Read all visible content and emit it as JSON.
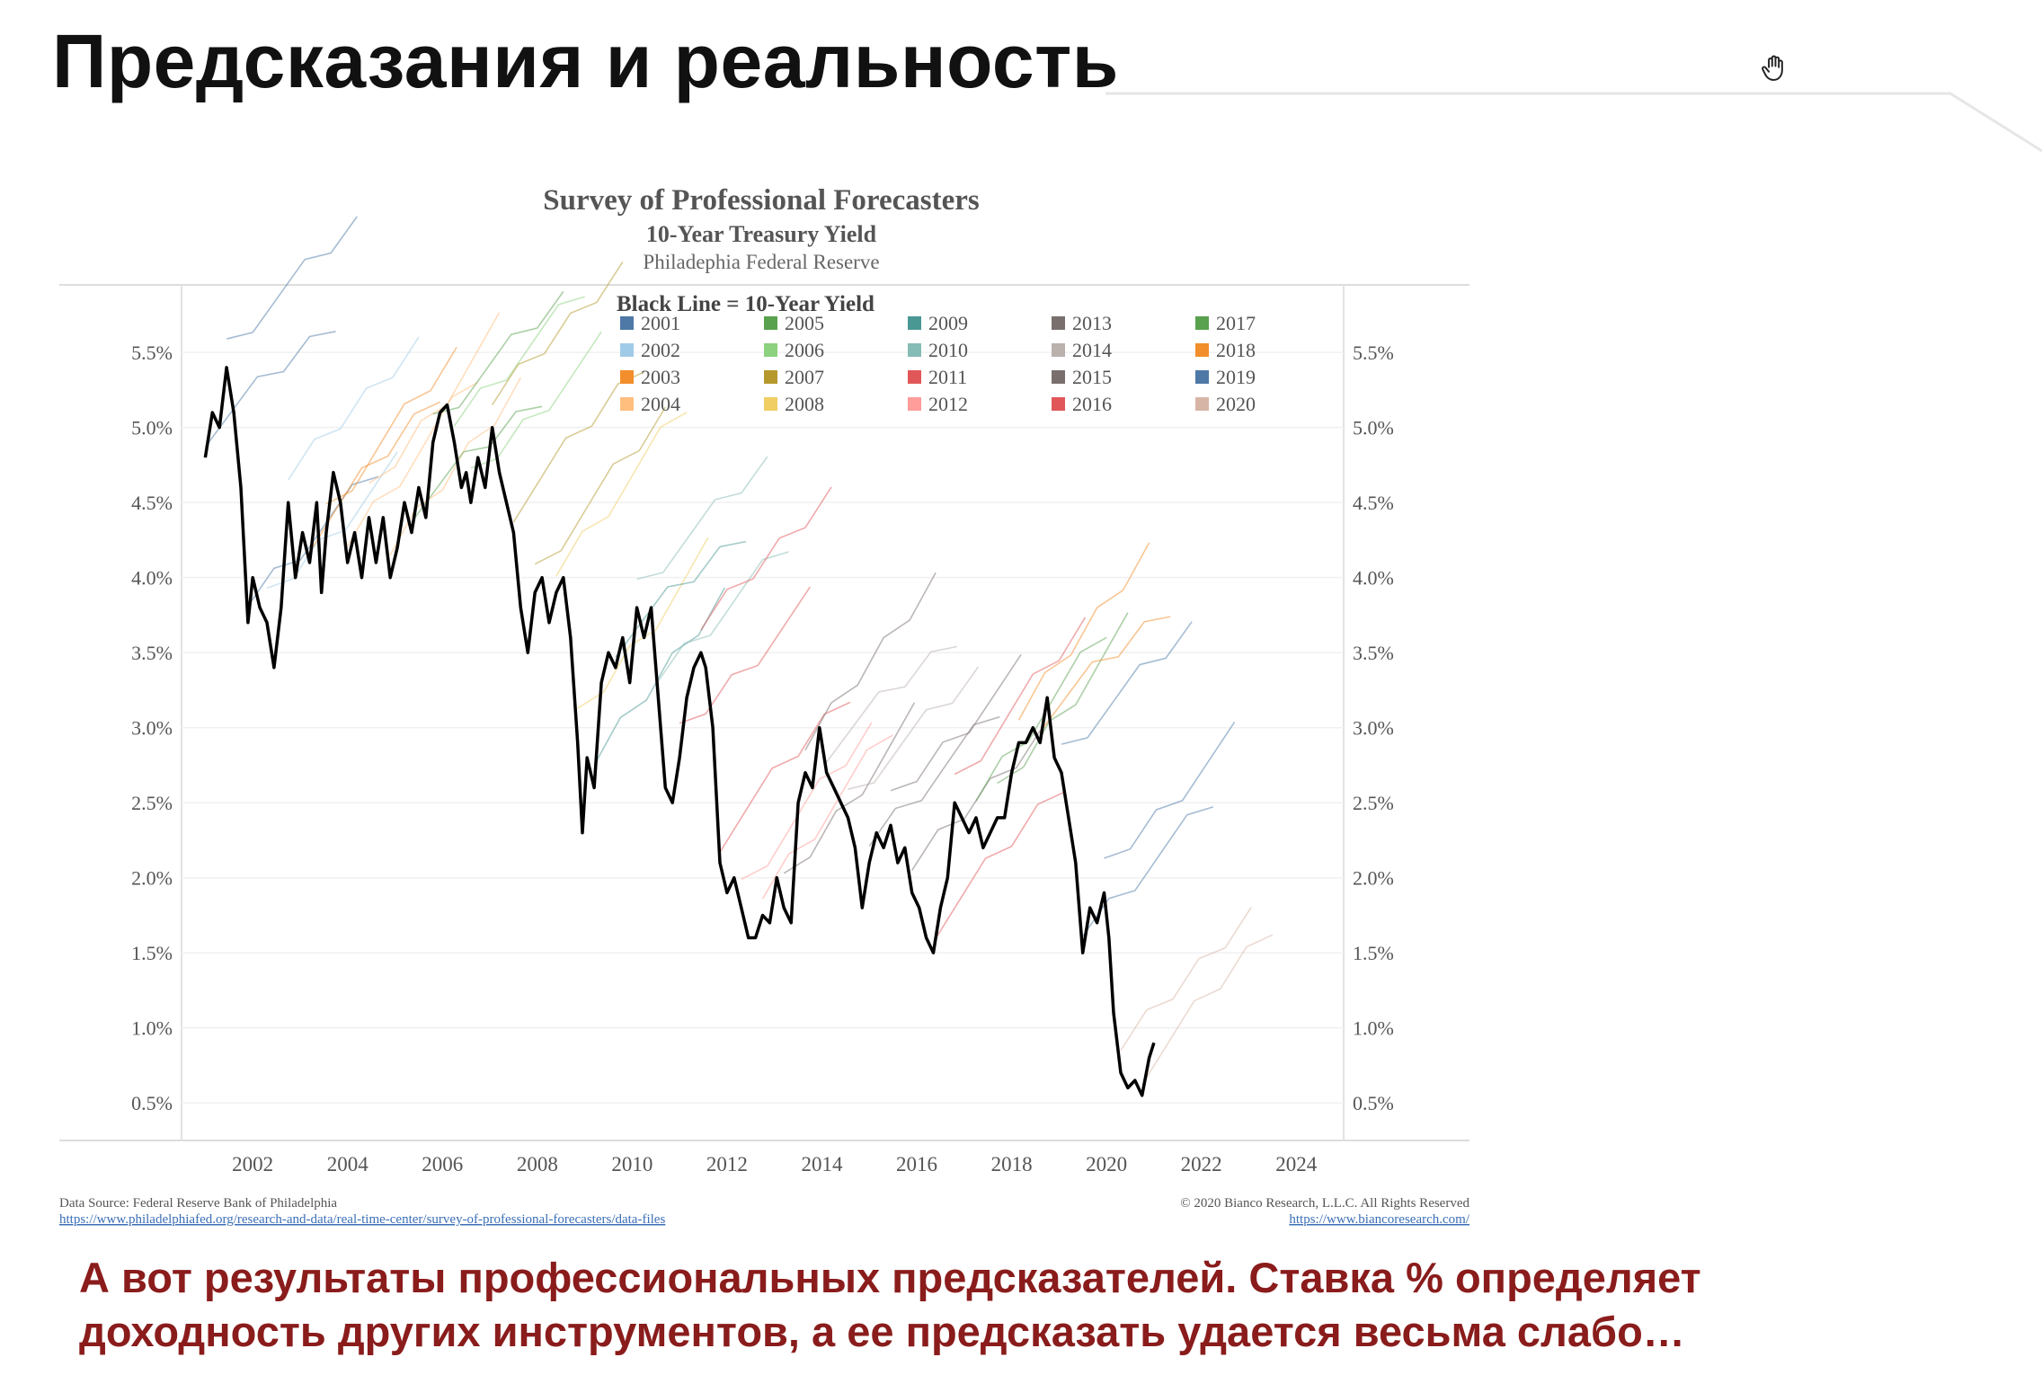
{
  "slide": {
    "title": "Предсказания и реальность",
    "caption_line1": "А вот результаты профессиональных предсказателей. Ставка % определяет",
    "caption_line2": "доходность других инструментов, а ее предсказать удается весьма слабо…",
    "cursor_icon": "hand-cursor-icon"
  },
  "chart_data": {
    "type": "line",
    "title": "Survey of Professional Forecasters",
    "subtitle": "10-Year Treasury Yield",
    "source_org": "Philadephia Federal Reserve",
    "legend_title": "Black Line = 10-Year Yield",
    "legend_placement": "top-center",
    "grid": true,
    "xlim": [
      2000.5,
      2025.0
    ],
    "ylim": [
      0.25,
      5.95
    ],
    "x_ticks": [
      "2002",
      "2004",
      "2006",
      "2008",
      "2010",
      "2012",
      "2014",
      "2016",
      "2018",
      "2020",
      "2022",
      "2024"
    ],
    "y_ticks": [
      "0.5%",
      "1.0%",
      "1.5%",
      "2.0%",
      "2.5%",
      "3.0%",
      "3.5%",
      "4.0%",
      "4.5%",
      "5.0%",
      "5.5%"
    ],
    "legend": [
      {
        "label": "2001",
        "color": "#4e79a7"
      },
      {
        "label": "2002",
        "color": "#a0cbe8"
      },
      {
        "label": "2003",
        "color": "#f28e2b"
      },
      {
        "label": "2004",
        "color": "#ffbe7d"
      },
      {
        "label": "2005",
        "color": "#59a14f"
      },
      {
        "label": "2006",
        "color": "#8cd17d"
      },
      {
        "label": "2007",
        "color": "#b6992d"
      },
      {
        "label": "2008",
        "color": "#f1ce63"
      },
      {
        "label": "2009",
        "color": "#499894"
      },
      {
        "label": "2010",
        "color": "#86bcb6"
      },
      {
        "label": "2011",
        "color": "#e15759"
      },
      {
        "label": "2012",
        "color": "#ff9d9a"
      },
      {
        "label": "2013",
        "color": "#79706e"
      },
      {
        "label": "2014",
        "color": "#bab0ac"
      },
      {
        "label": "2015",
        "color": "#79706e"
      },
      {
        "label": "2016",
        "color": "#e15759"
      },
      {
        "label": "2017",
        "color": "#59a14f"
      },
      {
        "label": "2018",
        "color": "#f28e2b"
      },
      {
        "label": "2019",
        "color": "#4e79a7"
      },
      {
        "label": "2020",
        "color": "#d7b5a6"
      }
    ],
    "series": [
      {
        "name": "10-Year Yield",
        "color": "#000000",
        "x": [
          2001.0,
          2001.15,
          2001.3,
          2001.45,
          2001.6,
          2001.75,
          2001.9,
          2002.0,
          2002.15,
          2002.3,
          2002.45,
          2002.6,
          2002.75,
          2002.9,
          2003.05,
          2003.2,
          2003.35,
          2003.45,
          2003.55,
          2003.7,
          2003.85,
          2004.0,
          2004.15,
          2004.3,
          2004.45,
          2004.6,
          2004.75,
          2004.9,
          2005.05,
          2005.2,
          2005.35,
          2005.5,
          2005.65,
          2005.8,
          2005.95,
          2006.1,
          2006.25,
          2006.4,
          2006.5,
          2006.6,
          2006.75,
          2006.9,
          2007.05,
          2007.2,
          2007.35,
          2007.5,
          2007.65,
          2007.8,
          2007.95,
          2008.1,
          2008.25,
          2008.4,
          2008.55,
          2008.7,
          2008.85,
          2008.95,
          2009.05,
          2009.2,
          2009.35,
          2009.5,
          2009.65,
          2009.8,
          2009.95,
          2010.1,
          2010.25,
          2010.4,
          2010.55,
          2010.7,
          2010.85,
          2011.0,
          2011.15,
          2011.3,
          2011.45,
          2011.55,
          2011.7,
          2011.85,
          2012.0,
          2012.15,
          2012.3,
          2012.45,
          2012.6,
          2012.75,
          2012.9,
          2013.05,
          2013.2,
          2013.35,
          2013.5,
          2013.65,
          2013.8,
          2013.95,
          2014.1,
          2014.25,
          2014.4,
          2014.55,
          2014.7,
          2014.85,
          2015.0,
          2015.15,
          2015.3,
          2015.45,
          2015.6,
          2015.75,
          2015.9,
          2016.05,
          2016.2,
          2016.35,
          2016.5,
          2016.65,
          2016.8,
          2016.95,
          2017.1,
          2017.25,
          2017.4,
          2017.55,
          2017.7,
          2017.85,
          2018.0,
          2018.15,
          2018.3,
          2018.45,
          2018.6,
          2018.75,
          2018.9,
          2019.05,
          2019.2,
          2019.35,
          2019.5,
          2019.65,
          2019.8,
          2019.95,
          2020.05,
          2020.15,
          2020.3,
          2020.45,
          2020.6,
          2020.75,
          2020.9,
          2021.0
        ],
        "y": [
          4.8,
          5.1,
          5.0,
          5.4,
          5.1,
          4.6,
          3.7,
          4.0,
          3.8,
          3.7,
          3.4,
          3.8,
          4.5,
          4.0,
          4.3,
          4.1,
          4.5,
          3.9,
          4.3,
          4.7,
          4.5,
          4.1,
          4.3,
          4.0,
          4.4,
          4.1,
          4.4,
          4.0,
          4.2,
          4.5,
          4.3,
          4.6,
          4.4,
          4.9,
          5.1,
          5.15,
          4.9,
          4.6,
          4.7,
          4.5,
          4.8,
          4.6,
          5.0,
          4.7,
          4.5,
          4.3,
          3.8,
          3.5,
          3.9,
          4.0,
          3.7,
          3.9,
          4.0,
          3.6,
          2.9,
          2.3,
          2.8,
          2.6,
          3.3,
          3.5,
          3.4,
          3.6,
          3.3,
          3.8,
          3.6,
          3.8,
          3.2,
          2.6,
          2.5,
          2.8,
          3.2,
          3.4,
          3.5,
          3.4,
          3.0,
          2.1,
          1.9,
          2.0,
          1.8,
          1.6,
          1.6,
          1.75,
          1.7,
          2.0,
          1.8,
          1.7,
          2.5,
          2.7,
          2.6,
          3.0,
          2.7,
          2.6,
          2.5,
          2.4,
          2.2,
          1.8,
          2.1,
          2.3,
          2.2,
          2.35,
          2.1,
          2.2,
          1.9,
          1.8,
          1.6,
          1.5,
          1.8,
          2.0,
          2.5,
          2.4,
          2.3,
          2.4,
          2.2,
          2.3,
          2.4,
          2.4,
          2.7,
          2.9,
          2.9,
          3.0,
          2.9,
          3.2,
          2.8,
          2.7,
          2.4,
          2.1,
          1.5,
          1.8,
          1.7,
          1.9,
          1.6,
          1.1,
          0.7,
          0.6,
          0.65,
          0.55,
          0.8,
          0.9
        ]
      }
    ],
    "footer_source": "Data Source: Federal Reserve Bank of Philadelphia",
    "footer_source_url": "https://www.philadelphiafed.org/research-and-data/real-time-center/survey-of-professional-forecasters/data-files",
    "footer_copyright": "© 2020 Bianco Research, L.L.C. All Rights Reserved",
    "footer_copyright_url": "https://www.biancoresearch.com/"
  }
}
